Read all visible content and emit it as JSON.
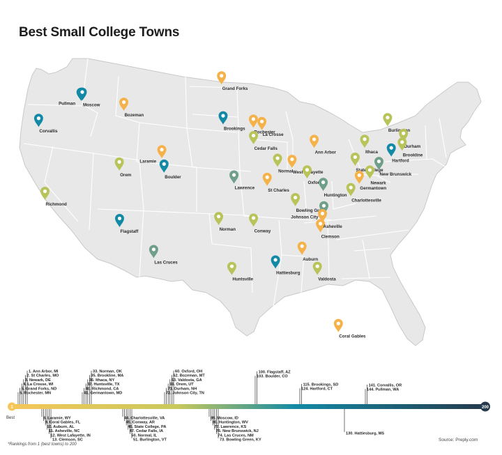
{
  "title": "Best Small College Towns",
  "colors": {
    "teal_dark": "#138aa5",
    "green": "#6f9f8a",
    "olive": "#b8c35a",
    "yellow": "#f2c45a",
    "orange": "#f5a54a",
    "land": "#e8e8e8",
    "border": "#ffffff"
  },
  "cities": [
    {
      "name": "Pullman",
      "lon": -117.18,
      "lat": 46.73,
      "color": "#138aa5",
      "label_side": "left"
    },
    {
      "name": "Moscow",
      "lon": -117.0,
      "lat": 46.73,
      "color": "#138aa5",
      "label_side": "below"
    },
    {
      "name": "Corvallis",
      "lon": -123.26,
      "lat": 44.56,
      "color": "#138aa5",
      "label_side": "below"
    },
    {
      "name": "Bozeman",
      "lon": -111.04,
      "lat": 45.68,
      "color": "#f5b24a",
      "label_side": "below"
    },
    {
      "name": "Grand Forks",
      "lon": -97.03,
      "lat": 47.92,
      "color": "#f5b24a",
      "label_side": "below"
    },
    {
      "name": "Brookings",
      "lon": -96.8,
      "lat": 44.31,
      "color": "#138aa5",
      "label_side": "below"
    },
    {
      "name": "Rochester",
      "lon": -92.46,
      "lat": 44.02,
      "color": "#f5b24a",
      "label_side": "below"
    },
    {
      "name": "La Crosse",
      "lon": -91.24,
      "lat": 43.81,
      "color": "#f5b24a",
      "label_side": "below"
    },
    {
      "name": "Cedar Falls",
      "lon": -92.44,
      "lat": 42.53,
      "color": "#b8c35a",
      "label_side": "below"
    },
    {
      "name": "Richmond",
      "lon": -122.35,
      "lat": 37.94,
      "color": "#b8c35a",
      "label_side": "below"
    },
    {
      "name": "Orem",
      "lon": -111.69,
      "lat": 40.3,
      "color": "#b8c35a",
      "label_side": "below"
    },
    {
      "name": "Laramie",
      "lon": -105.59,
      "lat": 41.31,
      "color": "#f5b24a",
      "label_side": "left"
    },
    {
      "name": "Boulder",
      "lon": -105.27,
      "lat": 40.01,
      "color": "#138aa5",
      "label_side": "below"
    },
    {
      "name": "Flagstaff",
      "lon": -111.65,
      "lat": 35.2,
      "color": "#138aa5",
      "label_side": "below"
    },
    {
      "name": "Las Cruces",
      "lon": -106.76,
      "lat": 32.32,
      "color": "#6f9f8a",
      "label_side": "below"
    },
    {
      "name": "Lawrence",
      "lon": -95.24,
      "lat": 38.97,
      "color": "#6f9f8a",
      "label_side": "below"
    },
    {
      "name": "St Charles",
      "lon": -90.48,
      "lat": 38.78,
      "color": "#f5b24a",
      "label_side": "below"
    },
    {
      "name": "Normal",
      "lon": -88.99,
      "lat": 40.51,
      "color": "#b8c35a",
      "label_side": "below"
    },
    {
      "name": "West Lafayette",
      "lon": -86.91,
      "lat": 40.43,
      "color": "#f5b24a",
      "label_side": "below"
    },
    {
      "name": "Oxford",
      "lon": -84.75,
      "lat": 39.51,
      "color": "#b8c35a",
      "label_side": "below"
    },
    {
      "name": "Ann Arbor",
      "lon": -83.74,
      "lat": 42.28,
      "color": "#f5b24a",
      "label_side": "below"
    },
    {
      "name": "Huntington",
      "lon": -82.44,
      "lat": 38.42,
      "color": "#6f9f8a",
      "label_side": "below"
    },
    {
      "name": "Bowling Green",
      "lon": -86.44,
      "lat": 36.99,
      "color": "#b8c35a",
      "label_side": "below"
    },
    {
      "name": "Johnson City",
      "lon": -82.35,
      "lat": 36.31,
      "color": "#6f9f8a",
      "label_side": "left"
    },
    {
      "name": "Norman",
      "lon": -97.44,
      "lat": 35.22,
      "color": "#b8c35a",
      "label_side": "below"
    },
    {
      "name": "Conway",
      "lon": -92.44,
      "lat": 35.09,
      "color": "#b8c35a",
      "label_side": "below"
    },
    {
      "name": "Huntsville",
      "lon": -95.55,
      "lat": 30.72,
      "color": "#b8c35a",
      "label_side": "below"
    },
    {
      "name": "Hattiesburg",
      "lon": -89.29,
      "lat": 31.33,
      "color": "#138aa5",
      "label_side": "below"
    },
    {
      "name": "Auburn",
      "lon": -85.48,
      "lat": 32.61,
      "color": "#f5b24a",
      "label_side": "below"
    },
    {
      "name": "Valdosta",
      "lon": -83.28,
      "lat": 30.83,
      "color": "#b8c35a",
      "label_side": "below"
    },
    {
      "name": "Clemson",
      "lon": -82.84,
      "lat": 34.68,
      "color": "#f5b24a",
      "label_side": "below"
    },
    {
      "name": "Asheville",
      "lon": -82.55,
      "lat": 35.6,
      "color": "#f5b24a",
      "label_side": "below"
    },
    {
      "name": "Charlottesville",
      "lon": -78.48,
      "lat": 38.03,
      "color": "#b8c35a",
      "label_side": "below"
    },
    {
      "name": "State College",
      "lon": -77.86,
      "lat": 40.79,
      "color": "#b8c35a",
      "label_side": "below"
    },
    {
      "name": "Ithaca",
      "lon": -76.5,
      "lat": 42.44,
      "color": "#b8c35a",
      "label_side": "below"
    },
    {
      "name": "Burlington",
      "lon": -73.21,
      "lat": 44.48,
      "color": "#b8c35a",
      "label_side": "below"
    },
    {
      "name": "Durham",
      "lon": -70.93,
      "lat": 43.13,
      "color": "#b8c35a",
      "label_side": "below"
    },
    {
      "name": "Brookline",
      "lon": -71.12,
      "lat": 42.33,
      "color": "#b8c35a",
      "label_side": "below"
    },
    {
      "name": "Hartford",
      "lon": -72.68,
      "lat": 41.76,
      "color": "#138aa5",
      "label_side": "below"
    },
    {
      "name": "New Brunswick",
      "lon": -74.45,
      "lat": 40.49,
      "color": "#6f9f8a",
      "label_side": "below"
    },
    {
      "name": "Newark",
      "lon": -75.75,
      "lat": 39.68,
      "color": "#b8c35a",
      "label_side": "below"
    },
    {
      "name": "Germantown",
      "lon": -77.27,
      "lat": 39.17,
      "color": "#f5b24a",
      "label_side": "below"
    },
    {
      "name": "Coral Gables",
      "lon": -80.27,
      "lat": 25.72,
      "color": "#f5b24a",
      "label_side": "below"
    }
  ],
  "scale": {
    "start_label": "1",
    "end_label": "200",
    "best_label": "Best",
    "footnote": "*Rankings from 1 (best towns) to 200",
    "source": "Source: Preply.com"
  },
  "rank_groups": [
    {
      "entries": [
        "1. Ann Arbor, MI",
        "2. St Charles, MO",
        "3. Newark, DE",
        "4. La Crosse, WI",
        "5. Grand Forks, ND",
        "6. Rochester, MN"
      ]
    },
    {
      "entries": [
        "33. Norman, OK",
        "35. Brookline, MA",
        "36. Ithaca, NY",
        "37. Huntsville, TX",
        "40. Richmond, CA",
        "41. Germantown, MD"
      ]
    },
    {
      "entries": [
        "60. Oxford, OH",
        "62. Bozeman, MT",
        "63. Valdosta, GA",
        "69. Orem, UT",
        "71. Durham, NH",
        "72. Johnson City, TN"
      ]
    },
    {
      "entries": [
        "100. Flagstaff, AZ",
        "103. Boulder, CO"
      ]
    },
    {
      "entries": [
        "115. Brookings, SD",
        "124. Hartford, CT"
      ]
    },
    {
      "entries": [
        "141. Corvallis, OR",
        "144. Pullman, WA"
      ]
    },
    {
      "entries": [
        "8. Laramie, WY",
        "9. Coral Gables, FL",
        "10. Auburn, AL",
        "11. Asheville, NC",
        "12. West Lafayette, IN",
        "13. Clemson, SC"
      ]
    },
    {
      "entries": [
        "44. Charlottesville, VA",
        "45. Conway, AR",
        "46. State College, PA",
        "47. Cedar Falls, IA",
        "50. Normal, IL",
        "51. Burlington, VT"
      ]
    },
    {
      "entries": [
        "89. Moscow, ID",
        "80. Huntington, WV",
        "77. Lawrence, KS",
        "76. New Brunswick, NJ",
        "74. Las Cruces, NM",
        "73. Bowling Green, KY"
      ]
    },
    {
      "entries": [
        "130. Hattiesburg, MS"
      ]
    }
  ]
}
